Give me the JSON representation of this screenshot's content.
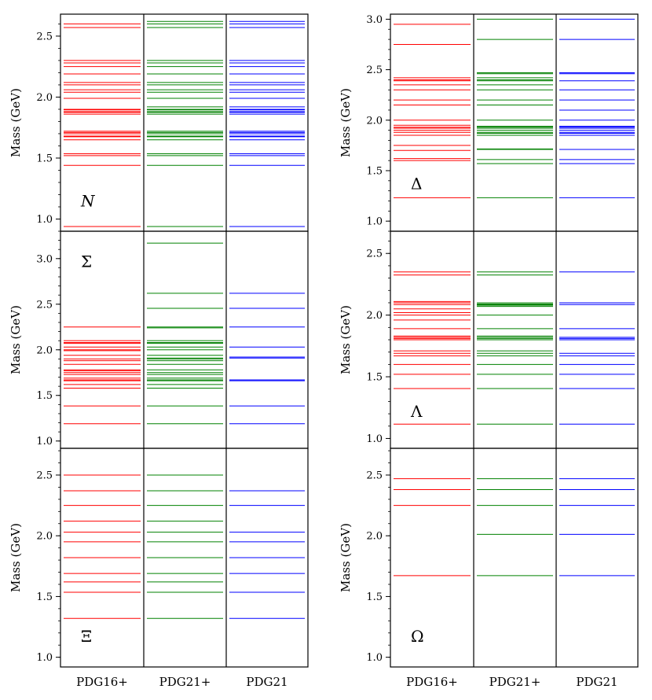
{
  "chart_data": {
    "type": "spectrum",
    "ylabel": "Mass (GeV)",
    "columns": [
      "PDG16+",
      "PDG21+",
      "PDG21"
    ],
    "colors": {
      "PDG16+": "#ff0000",
      "PDG21+": "#008000",
      "PDG21": "#0000ff"
    },
    "panels": [
      {
        "id": "N",
        "symbol": "N",
        "symbol_italic": true,
        "ylim": [
          0.9,
          2.68
        ],
        "ticks": [
          1.0,
          1.5,
          2.0,
          2.5
        ],
        "tick_labels": [
          "1.0",
          "1.5",
          "2.0",
          "2.5"
        ],
        "series": {
          "PDG16+": [
            0.939,
            1.44,
            1.52,
            1.535,
            1.65,
            1.675,
            1.68,
            1.7,
            1.71,
            1.72,
            1.86,
            1.875,
            1.88,
            1.895,
            1.9,
            1.99,
            2.04,
            2.06,
            2.1,
            2.12,
            2.19,
            2.25,
            2.28,
            2.3,
            2.57,
            2.6
          ],
          "PDG21+": [
            0.939,
            1.44,
            1.52,
            1.535,
            1.65,
            1.675,
            1.68,
            1.7,
            1.71,
            1.72,
            1.86,
            1.875,
            1.88,
            1.895,
            1.9,
            1.92,
            1.99,
            2.04,
            2.06,
            2.1,
            2.12,
            2.19,
            2.25,
            2.28,
            2.3,
            2.57,
            2.6,
            2.62
          ],
          "PDG21": [
            0.939,
            1.44,
            1.52,
            1.535,
            1.65,
            1.675,
            1.68,
            1.7,
            1.71,
            1.72,
            1.86,
            1.875,
            1.88,
            1.895,
            1.9,
            1.92,
            1.99,
            2.04,
            2.06,
            2.1,
            2.12,
            2.19,
            2.25,
            2.28,
            2.3,
            2.57,
            2.6,
            2.62
          ]
        }
      },
      {
        "id": "Delta",
        "symbol": "Δ",
        "symbol_italic": false,
        "ylim": [
          0.9,
          3.05
        ],
        "ticks": [
          1.0,
          1.5,
          2.0,
          2.5,
          3.0
        ],
        "tick_labels": [
          "1.0",
          "1.5",
          "2.0",
          "2.5",
          "3.0"
        ],
        "series": {
          "PDG16+": [
            1.232,
            1.6,
            1.62,
            1.7,
            1.75,
            1.85,
            1.88,
            1.9,
            1.92,
            1.93,
            1.95,
            2.0,
            2.15,
            2.2,
            2.3,
            2.35,
            2.39,
            2.4,
            2.42,
            2.75,
            2.95
          ],
          "PDG21+": [
            1.232,
            1.57,
            1.61,
            1.71,
            1.715,
            1.85,
            1.87,
            1.88,
            1.9,
            1.92,
            1.93,
            1.94,
            2.0,
            2.15,
            2.2,
            2.3,
            2.35,
            2.39,
            2.4,
            2.42,
            2.46,
            2.47,
            2.8,
            3.0
          ],
          "PDG21": [
            1.232,
            1.57,
            1.61,
            1.71,
            1.85,
            1.87,
            1.88,
            1.9,
            1.92,
            1.93,
            1.94,
            2.0,
            2.1,
            2.2,
            2.3,
            2.39,
            2.46,
            2.47,
            2.8,
            3.0
          ]
        }
      },
      {
        "id": "Sigma",
        "symbol": "Σ",
        "symbol_italic": false,
        "ylim": [
          0.92,
          3.3
        ],
        "ticks": [
          1.0,
          1.5,
          2.0,
          2.5,
          3.0
        ],
        "tick_labels": [
          "1.0",
          "1.5",
          "2.0",
          "2.5",
          "3.0"
        ],
        "series": {
          "PDG16+": [
            1.19,
            1.385,
            1.58,
            1.62,
            1.66,
            1.67,
            1.69,
            1.73,
            1.75,
            1.77,
            1.78,
            1.84,
            1.88,
            1.9,
            1.94,
            1.99,
            2.0,
            2.03,
            2.07,
            2.08,
            2.1,
            2.25
          ],
          "PDG21+": [
            1.19,
            1.385,
            1.58,
            1.62,
            1.66,
            1.67,
            1.69,
            1.73,
            1.75,
            1.78,
            1.84,
            1.88,
            1.9,
            1.91,
            1.94,
            2.0,
            2.03,
            2.07,
            2.08,
            2.1,
            2.24,
            2.25,
            2.455,
            2.62,
            3.17
          ],
          "PDG21": [
            1.19,
            1.385,
            1.66,
            1.67,
            1.91,
            1.92,
            2.03,
            2.25,
            2.455,
            2.62
          ]
        }
      },
      {
        "id": "Lambda",
        "symbol": "Λ",
        "symbol_italic": false,
        "ylim": [
          0.92,
          2.68
        ],
        "ticks": [
          1.0,
          1.5,
          2.0,
          2.5
        ],
        "tick_labels": [
          "1.0",
          "1.5",
          "2.0",
          "2.5"
        ],
        "series": {
          "PDG16+": [
            1.116,
            1.405,
            1.52,
            1.6,
            1.67,
            1.69,
            1.71,
            1.8,
            1.81,
            1.82,
            1.83,
            1.89,
            1.96,
            2.0,
            2.02,
            2.05,
            2.085,
            2.1,
            2.11,
            2.325,
            2.35
          ],
          "PDG21+": [
            1.116,
            1.405,
            1.52,
            1.6,
            1.67,
            1.69,
            1.71,
            1.8,
            1.81,
            1.82,
            1.83,
            1.89,
            2.0,
            2.07,
            2.08,
            2.085,
            2.09,
            2.1,
            2.325,
            2.35
          ],
          "PDG21": [
            1.116,
            1.405,
            1.52,
            1.6,
            1.67,
            1.69,
            1.8,
            1.81,
            1.82,
            1.89,
            2.085,
            2.1,
            2.35
          ]
        }
      },
      {
        "id": "Xi",
        "symbol": "Ξ",
        "symbol_italic": false,
        "ylim": [
          0.92,
          2.72
        ],
        "ticks": [
          1.0,
          1.5,
          2.0,
          2.5
        ],
        "tick_labels": [
          "1.0",
          "1.5",
          "2.0",
          "2.5"
        ],
        "series": {
          "PDG16+": [
            1.32,
            1.535,
            1.62,
            1.69,
            1.82,
            1.95,
            2.03,
            2.12,
            2.25,
            2.37,
            2.5
          ],
          "PDG21+": [
            1.32,
            1.535,
            1.62,
            1.69,
            1.82,
            1.95,
            2.03,
            2.12,
            2.25,
            2.37,
            2.5
          ],
          "PDG21": [
            1.32,
            1.535,
            1.69,
            1.82,
            1.95,
            2.03,
            2.25,
            2.37
          ]
        }
      },
      {
        "id": "Omega",
        "symbol": "Ω",
        "symbol_italic": false,
        "ylim": [
          0.92,
          2.72
        ],
        "ticks": [
          1.0,
          1.5,
          2.0,
          2.5
        ],
        "tick_labels": [
          "1.0",
          "1.5",
          "2.0",
          "2.5"
        ],
        "series": {
          "PDG16+": [
            1.672,
            2.25,
            2.38,
            2.47
          ],
          "PDG21+": [
            1.672,
            2.012,
            2.25,
            2.38,
            2.47
          ],
          "PDG21": [
            1.672,
            2.012,
            2.25,
            2.38,
            2.47
          ]
        }
      }
    ]
  }
}
